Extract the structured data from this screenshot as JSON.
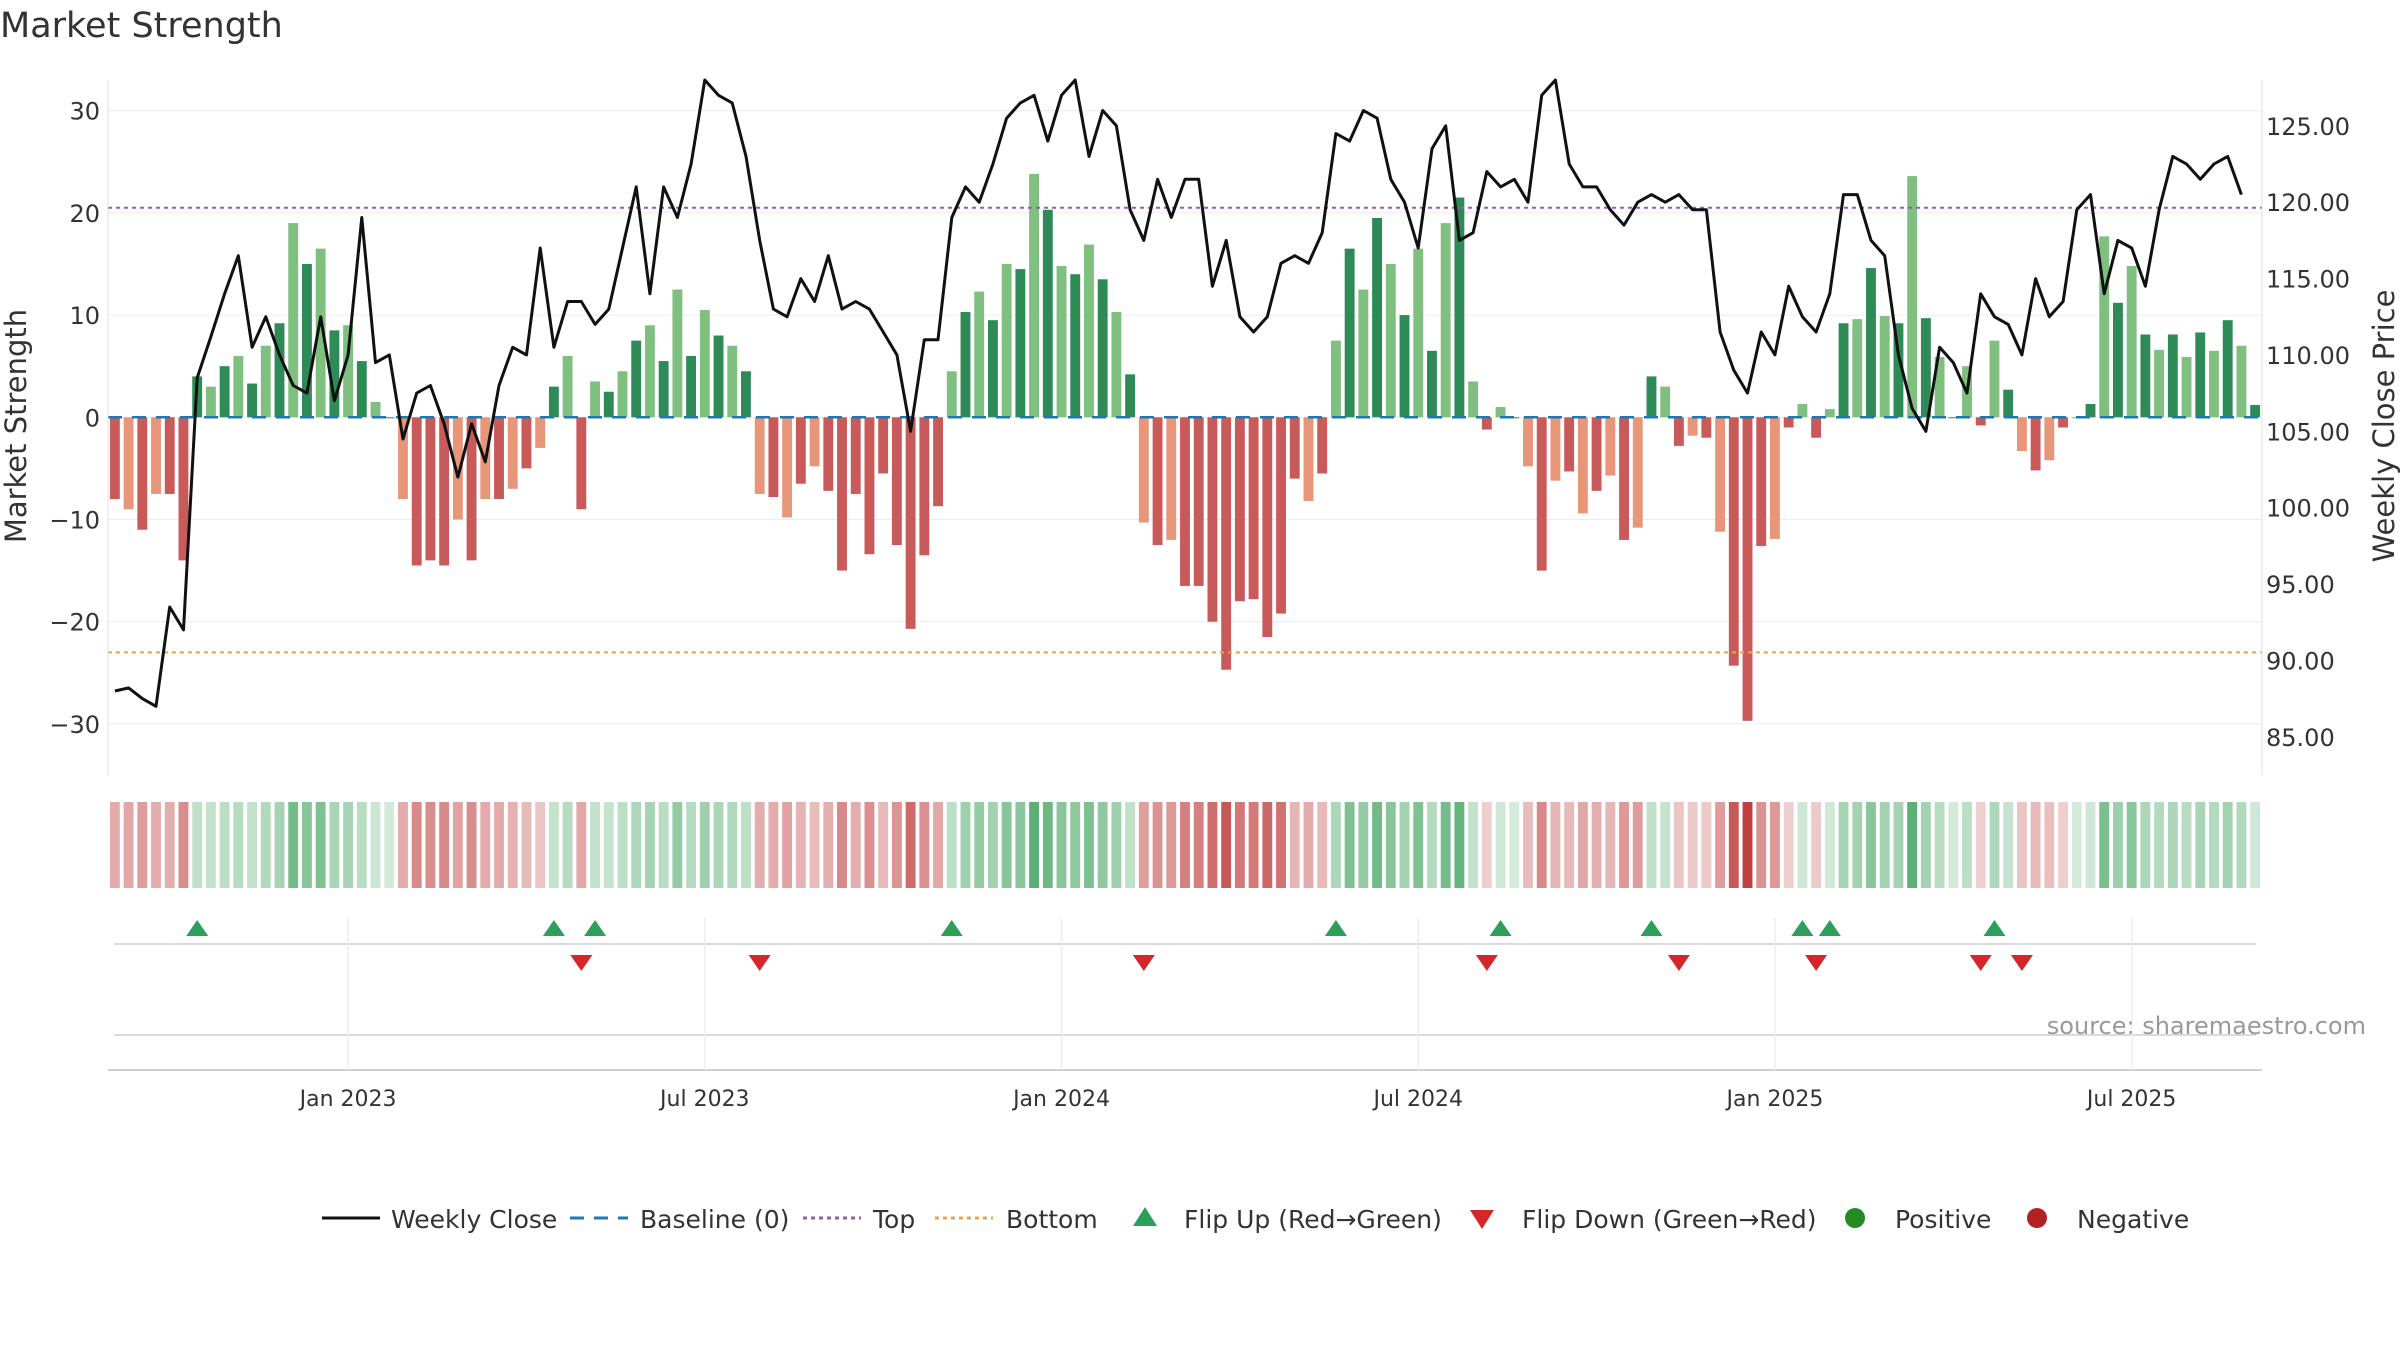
{
  "chart_data": {
    "type": "bar",
    "title": "Market Strength",
    "ylabel": "Market Strength",
    "y2label": "Weekly Close Price",
    "ylim": [
      -35,
      33
    ],
    "y2lim": [
      82.5,
      128
    ],
    "yticks": [
      30,
      20,
      10,
      0,
      -10,
      -20,
      -30
    ],
    "yticklabels": [
      "30",
      "20",
      "10",
      "0",
      "−10",
      "−20",
      "−30"
    ],
    "y2ticks": [
      125,
      120,
      115,
      110,
      105,
      100,
      95,
      90,
      85
    ],
    "y2ticklabels": [
      "125.00",
      "120.00",
      "115.00",
      "110.00",
      "105.00",
      "100.00",
      "95.00",
      "90.00",
      "85.00"
    ],
    "xticks": [
      {
        "label": "Jan 2023",
        "index": 17
      },
      {
        "label": "Jul 2023",
        "index": 43
      },
      {
        "label": "Jan 2024",
        "index": 69
      },
      {
        "label": "Jul 2024",
        "index": 95
      },
      {
        "label": "Jan 2025",
        "index": 121
      },
      {
        "label": "Jul 2025",
        "index": 147
      }
    ],
    "top_threshold": 20.5,
    "bottom_threshold": -23,
    "strength": [
      -8,
      -9,
      -11,
      -7.5,
      -7.5,
      -14,
      4,
      3,
      5,
      6,
      3.3,
      7,
      9.2,
      19,
      15,
      16.5,
      8.5,
      9,
      5.5,
      1.5,
      0,
      -8,
      -14.5,
      -14,
      -14.5,
      -10,
      -14,
      -8,
      -8,
      -7,
      -5,
      -3,
      3,
      6,
      -9,
      3.5,
      2.5,
      4.5,
      7.5,
      9,
      5.5,
      12.5,
      6,
      10.5,
      8,
      7,
      4.5,
      -7.5,
      -7.8,
      -9.8,
      -6.5,
      -4.8,
      -7.2,
      -15,
      -7.5,
      -13.4,
      -5.5,
      -12.5,
      -20.7,
      -13.5,
      -8.7,
      4.5,
      10.3,
      12.3,
      9.5,
      15,
      14.5,
      23.8,
      20.3,
      14.8,
      14,
      16.9,
      13.5,
      10.3,
      4.2,
      -10.3,
      -12.5,
      -12,
      -16.5,
      -16.5,
      -20,
      -24.7,
      -18,
      -17.8,
      -21.5,
      -19.2,
      -6,
      -8.2,
      -5.5,
      7.5,
      16.5,
      12.5,
      19.5,
      15,
      10,
      16.5,
      6.5,
      19,
      21.5,
      3.5,
      -1.2,
      1,
      0,
      -4.8,
      -15,
      -6.2,
      -5.3,
      -9.4,
      -7.2,
      -5.7,
      -12,
      -10.8,
      4,
      3,
      -2.8,
      -1.8,
      -2,
      -11.2,
      -24.3,
      -29.7,
      -12.6,
      -11.9,
      -1,
      1.3,
      -2,
      0.8,
      9.2,
      9.6,
      14.6,
      9.9,
      9.2,
      23.6,
      9.7,
      5.9,
      0,
      5,
      -0.8,
      7.5,
      2.7,
      -3.3,
      -5.2,
      -4.2,
      -1,
      0,
      1.3,
      17.7,
      11.2,
      14.8,
      8.1,
      6.6,
      8.1,
      5.9,
      8.3,
      6.5,
      9.5,
      7,
      1.2
    ],
    "weekly_close": [
      88,
      88.2,
      87.5,
      87.0,
      93.5,
      92.0,
      108.5,
      111.2,
      114,
      116.5,
      110.5,
      112.5,
      110,
      108,
      107.5,
      112.5,
      107,
      110,
      119,
      109.5,
      110,
      104.5,
      107.5,
      108,
      105.5,
      102,
      105.5,
      103,
      108,
      110.5,
      110,
      117,
      110.5,
      113.5,
      113.5,
      112,
      113,
      117,
      121,
      114,
      121,
      119,
      122.5,
      128,
      127,
      126.5,
      123,
      117.5,
      113,
      112.5,
      115,
      113.5,
      116.5,
      113,
      113.5,
      113,
      111.5,
      110,
      105,
      111,
      111,
      119,
      121,
      120,
      122.5,
      125.5,
      126.5,
      127,
      124,
      127,
      128,
      123,
      126,
      125,
      119.5,
      117.5,
      121.5,
      119,
      121.5,
      121.5,
      114.5,
      117.5,
      112.5,
      111.5,
      112.5,
      116,
      116.5,
      116,
      118,
      124.5,
      124,
      126,
      125.5,
      121.5,
      120,
      117,
      123.5,
      125,
      117.5,
      118,
      122,
      121,
      121.5,
      120,
      127,
      128,
      122.5,
      121,
      121,
      119.5,
      118.5,
      120,
      120.5,
      120,
      120.5,
      119.5,
      119.5,
      111.5,
      109,
      107.5,
      111.5,
      110,
      114.5,
      112.5,
      111.5,
      114,
      120.5,
      120.5,
      117.5,
      116.5,
      110,
      106.5,
      105,
      110.5,
      109.5,
      107.5,
      114,
      112.5,
      112,
      110,
      115,
      112.5,
      113.5,
      119.5,
      120.5,
      114,
      117.5,
      117,
      114.5,
      119.5,
      123,
      122.5,
      121.5,
      122.5,
      123,
      120.5
    ]
  },
  "legend": {
    "weekly_close": "Weekly Close",
    "baseline": "Baseline (0)",
    "top": "Top",
    "bottom": "Bottom",
    "flip_up": "Flip Up (Red→Green)",
    "flip_down": "Flip Down (Green→Red)",
    "positive": "Positive",
    "negative": "Negative"
  },
  "source": "source: sharemaestro.com",
  "colors": {
    "positive_dark": "#2e8b57",
    "positive_light": "#7fbf7f",
    "negative_dark": "#c85a5a",
    "negative_light": "#e8967a",
    "line": "#111111",
    "baseline": "#1f77b4",
    "top": "#9b59b6",
    "bottom": "#f0a050",
    "flip_up": "#2ca05a",
    "flip_down": "#d62728",
    "positive_dot": "#228b22",
    "negative_dot": "#b22222"
  }
}
